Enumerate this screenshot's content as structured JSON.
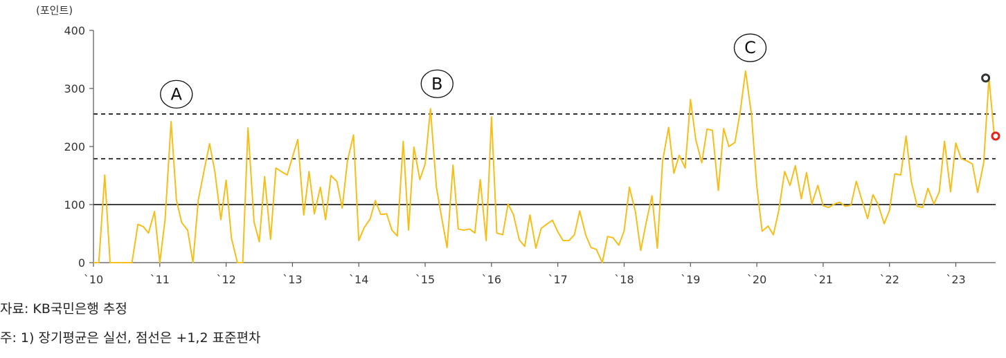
{
  "notes": {
    "source": "자료: KB국민은행 추정",
    "footnote": "주: 1) 장기평균은 실선, 점선은 +1,2 표준편차"
  },
  "chart_data": {
    "type": "line",
    "unit_label": "(포인트)",
    "ylim": [
      0,
      400
    ],
    "yticks": [
      0,
      100,
      200,
      300,
      400
    ],
    "x_range": [
      2010.0,
      2023.6
    ],
    "x_tick_years": [
      2010,
      2011,
      2012,
      2013,
      2014,
      2015,
      2016,
      2017,
      2018,
      2019,
      2020,
      2021,
      2022,
      2023
    ],
    "x_tick_labels": [
      "`10",
      "`11",
      "`12",
      "`13",
      "`14",
      "`15",
      "`16",
      "`17",
      "`18",
      "`19",
      "`20",
      "`21",
      "`22",
      "`23"
    ],
    "series_color": "#F5BE19",
    "reference_lines": [
      {
        "value": 100,
        "style": "solid",
        "color": "#000000"
      },
      {
        "value": 179,
        "style": "dashed",
        "color": "#000000"
      },
      {
        "value": 256,
        "style": "dashed",
        "color": "#000000"
      }
    ],
    "annotations": [
      {
        "label": "A",
        "x": 2011.25,
        "y": 290
      },
      {
        "label": "B",
        "x": 2015.18,
        "y": 308
      },
      {
        "label": "C",
        "x": 2019.9,
        "y": 370
      }
    ],
    "markers": [
      {
        "x": 2023.45,
        "y": 318,
        "color": "#333333"
      },
      {
        "x": 2023.6,
        "y": 218,
        "color": "#E2231A"
      }
    ],
    "x": [
      2010.0,
      2010.08,
      2010.17,
      2010.25,
      2010.33,
      2010.42,
      2010.5,
      2010.58,
      2010.67,
      2010.75,
      2010.83,
      2010.92,
      2011.0,
      2011.08,
      2011.17,
      2011.25,
      2011.33,
      2011.42,
      2011.5,
      2011.58,
      2011.67,
      2011.75,
      2011.83,
      2011.92,
      2012.0,
      2012.08,
      2012.17,
      2012.25,
      2012.33,
      2012.42,
      2012.5,
      2012.58,
      2012.67,
      2012.75,
      2012.83,
      2012.92,
      2013.0,
      2013.08,
      2013.17,
      2013.25,
      2013.33,
      2013.42,
      2013.5,
      2013.58,
      2013.67,
      2013.75,
      2013.83,
      2013.92,
      2014.0,
      2014.08,
      2014.17,
      2014.25,
      2014.33,
      2014.42,
      2014.5,
      2014.58,
      2014.67,
      2014.75,
      2014.83,
      2014.92,
      2015.0,
      2015.08,
      2015.17,
      2015.25,
      2015.33,
      2015.42,
      2015.5,
      2015.58,
      2015.67,
      2015.75,
      2015.83,
      2015.92,
      2016.0,
      2016.08,
      2016.17,
      2016.25,
      2016.33,
      2016.42,
      2016.5,
      2016.58,
      2016.67,
      2016.75,
      2016.83,
      2016.92,
      2017.0,
      2017.08,
      2017.17,
      2017.25,
      2017.33,
      2017.42,
      2017.5,
      2017.58,
      2017.67,
      2017.75,
      2017.83,
      2017.92,
      2018.0,
      2018.08,
      2018.17,
      2018.25,
      2018.33,
      2018.42,
      2018.5,
      2018.58,
      2018.67,
      2018.75,
      2018.83,
      2018.92,
      2019.0,
      2019.08,
      2019.17,
      2019.25,
      2019.33,
      2019.42,
      2019.5,
      2019.58,
      2019.67,
      2019.75,
      2019.83,
      2019.92,
      2020.0,
      2020.08,
      2020.17,
      2020.25,
      2020.33,
      2020.42,
      2020.5,
      2020.58,
      2020.67,
      2020.75,
      2020.83,
      2020.92,
      2021.0,
      2021.08,
      2021.17,
      2021.25,
      2021.33,
      2021.42,
      2021.5,
      2021.58,
      2021.67,
      2021.75,
      2021.83,
      2021.92,
      2022.0,
      2022.08,
      2022.17,
      2022.25,
      2022.33,
      2022.42,
      2022.5,
      2022.58,
      2022.67,
      2022.75,
      2022.83,
      2022.92,
      2023.0,
      2023.08,
      2023.17,
      2023.25,
      2023.33,
      2023.42,
      2023.5,
      2023.58
    ],
    "values": [
      0,
      0,
      151,
      0,
      0,
      0,
      0,
      0,
      66,
      62,
      51,
      88,
      0,
      75,
      243,
      108,
      69,
      56,
      0,
      108,
      160,
      205,
      157,
      74,
      142,
      42,
      0,
      0,
      232,
      70,
      36,
      148,
      40,
      163,
      157,
      151,
      182,
      212,
      82,
      157,
      84,
      130,
      74,
      150,
      140,
      94,
      176,
      220,
      38,
      60,
      75,
      107,
      83,
      84,
      56,
      46,
      209,
      56,
      199,
      143,
      170,
      265,
      130,
      77,
      26,
      168,
      58,
      56,
      58,
      51,
      143,
      38,
      251,
      51,
      48,
      101,
      83,
      39,
      28,
      82,
      25,
      59,
      66,
      73,
      53,
      38,
      38,
      48,
      89,
      48,
      26,
      23,
      0,
      45,
      43,
      30,
      55,
      130,
      87,
      21,
      68,
      115,
      25,
      175,
      233,
      154,
      185,
      163,
      281,
      212,
      172,
      230,
      228,
      124,
      231,
      200,
      207,
      260,
      330,
      255,
      131,
      54,
      63,
      48,
      89,
      157,
      133,
      167,
      110,
      155,
      101,
      133,
      98,
      95,
      101,
      104,
      97,
      99,
      140,
      109,
      76,
      117,
      100,
      67,
      90,
      153,
      151,
      218,
      139,
      97,
      95,
      128,
      101,
      122,
      209,
      122,
      206,
      179,
      175,
      170,
      121,
      172,
      318,
      218
    ]
  }
}
